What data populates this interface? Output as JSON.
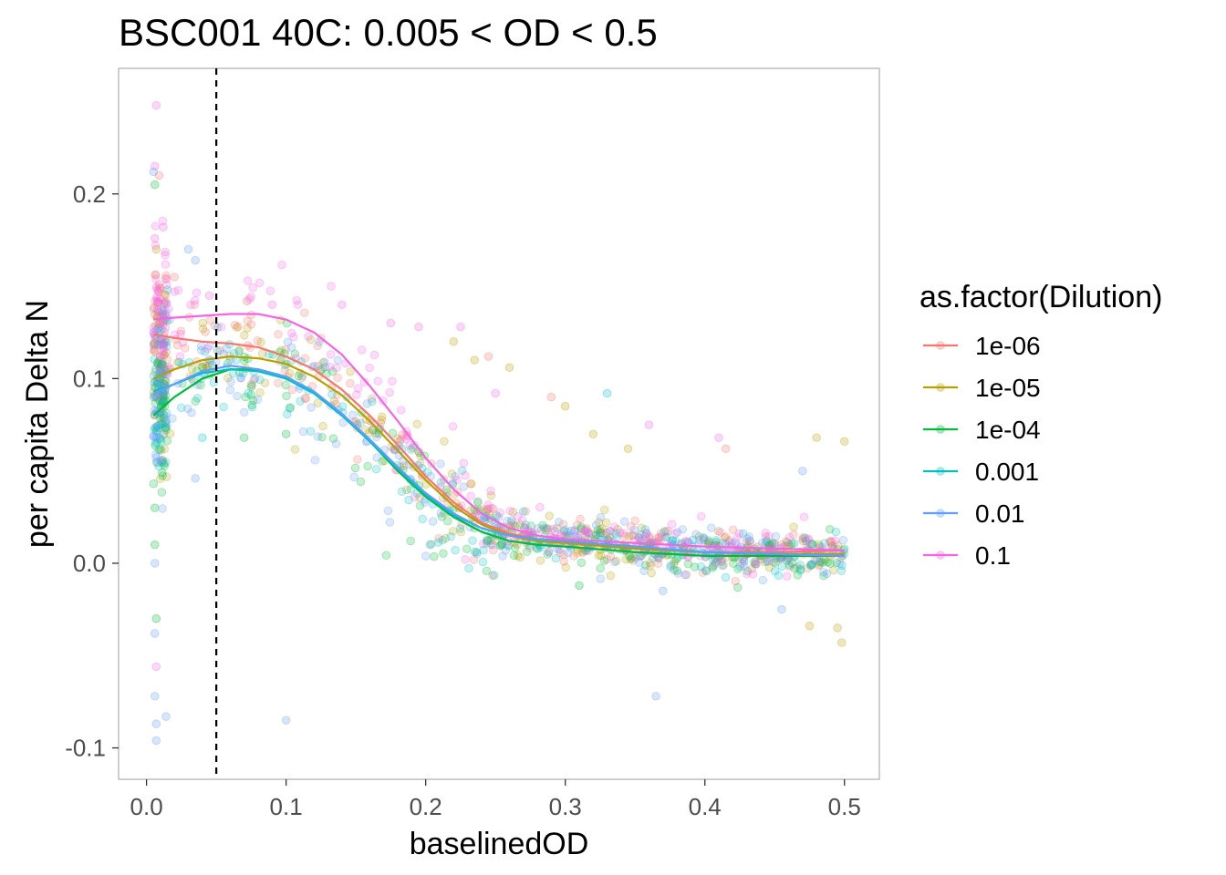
{
  "chart_data": {
    "type": "scatter",
    "title": "BSC001 40C: 0.005 < OD < 0.5",
    "xlabel": "baselinedOD",
    "ylabel": "per capita Delta N",
    "xlim": [
      -0.02,
      0.525
    ],
    "ylim": [
      -0.117,
      0.268
    ],
    "x_ticks": [
      "0.0",
      "0.1",
      "0.2",
      "0.3",
      "0.4",
      "0.5"
    ],
    "x_tick_values": [
      0.0,
      0.1,
      0.2,
      0.3,
      0.4,
      0.5
    ],
    "y_ticks": [
      "-0.1",
      "0.0",
      "0.1",
      "0.2"
    ],
    "y_tick_values": [
      -0.1,
      0.0,
      0.1,
      0.2
    ],
    "grid": false,
    "legend_position": "right",
    "legend_title": "as.factor(Dilution)",
    "vline": {
      "x": 0.05,
      "style": "dashed",
      "color": "#000000"
    },
    "series": [
      {
        "name": "1e-06",
        "color": "#F8766D",
        "smooth": [
          [
            0.005,
            0.124
          ],
          [
            0.02,
            0.122
          ],
          [
            0.04,
            0.12
          ],
          [
            0.06,
            0.119
          ],
          [
            0.08,
            0.117
          ],
          [
            0.1,
            0.112
          ],
          [
            0.12,
            0.105
          ],
          [
            0.14,
            0.094
          ],
          [
            0.16,
            0.08
          ],
          [
            0.18,
            0.064
          ],
          [
            0.2,
            0.047
          ],
          [
            0.22,
            0.033
          ],
          [
            0.24,
            0.022
          ],
          [
            0.26,
            0.016
          ],
          [
            0.28,
            0.013
          ],
          [
            0.3,
            0.011
          ],
          [
            0.35,
            0.008
          ],
          [
            0.4,
            0.006
          ],
          [
            0.45,
            0.006
          ],
          [
            0.5,
            0.007
          ]
        ]
      },
      {
        "name": "1e-05",
        "color": "#B79F00",
        "smooth": [
          [
            0.005,
            0.1
          ],
          [
            0.02,
            0.105
          ],
          [
            0.04,
            0.11
          ],
          [
            0.06,
            0.112
          ],
          [
            0.08,
            0.111
          ],
          [
            0.1,
            0.108
          ],
          [
            0.12,
            0.101
          ],
          [
            0.14,
            0.091
          ],
          [
            0.16,
            0.077
          ],
          [
            0.18,
            0.061
          ],
          [
            0.2,
            0.045
          ],
          [
            0.22,
            0.031
          ],
          [
            0.24,
            0.021
          ],
          [
            0.26,
            0.015
          ],
          [
            0.28,
            0.012
          ],
          [
            0.3,
            0.011
          ],
          [
            0.35,
            0.008
          ],
          [
            0.4,
            0.006
          ],
          [
            0.45,
            0.005
          ],
          [
            0.5,
            0.005
          ]
        ]
      },
      {
        "name": "1e-04",
        "color": "#00BA38",
        "smooth": [
          [
            0.005,
            0.08
          ],
          [
            0.02,
            0.09
          ],
          [
            0.04,
            0.1
          ],
          [
            0.06,
            0.105
          ],
          [
            0.08,
            0.105
          ],
          [
            0.1,
            0.101
          ],
          [
            0.12,
            0.093
          ],
          [
            0.14,
            0.081
          ],
          [
            0.16,
            0.066
          ],
          [
            0.18,
            0.05
          ],
          [
            0.2,
            0.036
          ],
          [
            0.22,
            0.025
          ],
          [
            0.24,
            0.017
          ],
          [
            0.26,
            0.012
          ],
          [
            0.28,
            0.01
          ],
          [
            0.3,
            0.009
          ],
          [
            0.35,
            0.006
          ],
          [
            0.4,
            0.004
          ],
          [
            0.45,
            0.004
          ],
          [
            0.5,
            0.004
          ]
        ]
      },
      {
        "name": "0.001",
        "color": "#00BFC4",
        "smooth": [
          [
            0.005,
            0.093
          ],
          [
            0.02,
            0.097
          ],
          [
            0.04,
            0.103
          ],
          [
            0.06,
            0.105
          ],
          [
            0.08,
            0.104
          ],
          [
            0.1,
            0.1
          ],
          [
            0.12,
            0.092
          ],
          [
            0.14,
            0.08
          ],
          [
            0.16,
            0.066
          ],
          [
            0.18,
            0.051
          ],
          [
            0.2,
            0.037
          ],
          [
            0.22,
            0.026
          ],
          [
            0.24,
            0.019
          ],
          [
            0.26,
            0.015
          ],
          [
            0.28,
            0.013
          ],
          [
            0.3,
            0.012
          ],
          [
            0.35,
            0.009
          ],
          [
            0.4,
            0.006
          ],
          [
            0.45,
            0.005
          ],
          [
            0.5,
            0.004
          ]
        ]
      },
      {
        "name": "0.01",
        "color": "#619CFF",
        "smooth": [
          [
            0.005,
            0.092
          ],
          [
            0.02,
            0.097
          ],
          [
            0.04,
            0.104
          ],
          [
            0.06,
            0.107
          ],
          [
            0.08,
            0.105
          ],
          [
            0.1,
            0.101
          ],
          [
            0.12,
            0.093
          ],
          [
            0.14,
            0.081
          ],
          [
            0.16,
            0.067
          ],
          [
            0.18,
            0.052
          ],
          [
            0.2,
            0.038
          ],
          [
            0.22,
            0.027
          ],
          [
            0.24,
            0.019
          ],
          [
            0.26,
            0.015
          ],
          [
            0.28,
            0.013
          ],
          [
            0.3,
            0.012
          ],
          [
            0.35,
            0.009
          ],
          [
            0.4,
            0.006
          ],
          [
            0.45,
            0.005
          ],
          [
            0.5,
            0.004
          ]
        ]
      },
      {
        "name": "0.1",
        "color": "#F564E3",
        "smooth": [
          [
            0.005,
            0.132
          ],
          [
            0.02,
            0.133
          ],
          [
            0.04,
            0.134
          ],
          [
            0.06,
            0.135
          ],
          [
            0.08,
            0.135
          ],
          [
            0.1,
            0.132
          ],
          [
            0.12,
            0.125
          ],
          [
            0.14,
            0.113
          ],
          [
            0.16,
            0.096
          ],
          [
            0.18,
            0.077
          ],
          [
            0.2,
            0.057
          ],
          [
            0.22,
            0.04
          ],
          [
            0.24,
            0.027
          ],
          [
            0.26,
            0.019
          ],
          [
            0.28,
            0.015
          ],
          [
            0.3,
            0.013
          ],
          [
            0.35,
            0.011
          ],
          [
            0.4,
            0.009
          ],
          [
            0.45,
            0.008
          ],
          [
            0.5,
            0.007
          ]
        ]
      }
    ],
    "scatter_points": [
      {
        "series": "0.1",
        "x": 0.007,
        "y": 0.248
      },
      {
        "series": "0.1",
        "x": 0.006,
        "y": 0.215
      },
      {
        "series": "1e-06",
        "x": 0.009,
        "y": 0.21
      },
      {
        "series": "0.01",
        "x": 0.005,
        "y": 0.212
      },
      {
        "series": "1e-04",
        "x": 0.006,
        "y": 0.205
      },
      {
        "series": "0.1",
        "x": 0.012,
        "y": 0.182
      },
      {
        "series": "0.1",
        "x": 0.006,
        "y": 0.176
      },
      {
        "series": "1e-05",
        "x": 0.007,
        "y": 0.17
      },
      {
        "series": "0.01",
        "x": 0.03,
        "y": 0.17
      },
      {
        "series": "0.01",
        "x": 0.035,
        "y": 0.164
      },
      {
        "series": "1e-06",
        "x": 0.02,
        "y": 0.155
      },
      {
        "series": "0.001",
        "x": 0.015,
        "y": 0.148
      },
      {
        "series": "0.1",
        "x": 0.045,
        "y": 0.145
      },
      {
        "series": "1e-06",
        "x": 0.072,
        "y": 0.142
      },
      {
        "series": "0.1",
        "x": 0.09,
        "y": 0.14
      },
      {
        "series": "0.1",
        "x": 0.14,
        "y": 0.14
      },
      {
        "series": "0.1",
        "x": 0.175,
        "y": 0.13
      },
      {
        "series": "0.1",
        "x": 0.195,
        "y": 0.128
      },
      {
        "series": "0.1",
        "x": 0.225,
        "y": 0.128
      },
      {
        "series": "1e-05",
        "x": 0.22,
        "y": 0.12
      },
      {
        "series": "1e-06",
        "x": 0.245,
        "y": 0.112
      },
      {
        "series": "1e-05",
        "x": 0.235,
        "y": 0.11
      },
      {
        "series": "1e-05",
        "x": 0.26,
        "y": 0.106
      },
      {
        "series": "0.001",
        "x": 0.33,
        "y": 0.092
      },
      {
        "series": "0.1",
        "x": 0.25,
        "y": 0.092
      },
      {
        "series": "1e-06",
        "x": 0.29,
        "y": 0.09
      },
      {
        "series": "1e-05",
        "x": 0.3,
        "y": 0.085
      },
      {
        "series": "0.1",
        "x": 0.36,
        "y": 0.075
      },
      {
        "series": "1e-05",
        "x": 0.32,
        "y": 0.07
      },
      {
        "series": "0.1",
        "x": 0.41,
        "y": 0.068
      },
      {
        "series": "1e-05",
        "x": 0.48,
        "y": 0.068
      },
      {
        "series": "1e-05",
        "x": 0.5,
        "y": 0.066
      },
      {
        "series": "1e-06",
        "x": 0.415,
        "y": 0.062
      },
      {
        "series": "1e-05",
        "x": 0.345,
        "y": 0.062
      },
      {
        "series": "0.01",
        "x": 0.47,
        "y": 0.05
      },
      {
        "series": "1e-04",
        "x": 0.1,
        "y": 0.07
      },
      {
        "series": "1e-04",
        "x": 0.07,
        "y": 0.068
      },
      {
        "series": "0.001",
        "x": 0.04,
        "y": 0.068
      },
      {
        "series": "0.01",
        "x": 0.035,
        "y": 0.046
      },
      {
        "series": "1e-04",
        "x": 0.006,
        "y": 0.03
      },
      {
        "series": "1e-04",
        "x": 0.006,
        "y": 0.01
      },
      {
        "series": "0.01",
        "x": 0.006,
        "y": 0.0
      },
      {
        "series": "1e-04",
        "x": 0.007,
        "y": -0.03
      },
      {
        "series": "0.01",
        "x": 0.006,
        "y": -0.038
      },
      {
        "series": "0.1",
        "x": 0.007,
        "y": -0.056
      },
      {
        "series": "0.01",
        "x": 0.006,
        "y": -0.072
      },
      {
        "series": "0.01",
        "x": 0.007,
        "y": -0.087
      },
      {
        "series": "0.01",
        "x": 0.014,
        "y": -0.083
      },
      {
        "series": "0.01",
        "x": 0.007,
        "y": -0.096
      },
      {
        "series": "0.01",
        "x": 0.1,
        "y": -0.085
      },
      {
        "series": "0.01",
        "x": 0.365,
        "y": -0.072
      },
      {
        "series": "1e-05",
        "x": 0.498,
        "y": -0.043
      },
      {
        "series": "1e-05",
        "x": 0.495,
        "y": -0.035
      },
      {
        "series": "0.01",
        "x": 0.455,
        "y": -0.025
      },
      {
        "series": "1e-05",
        "x": 0.475,
        "y": -0.034
      },
      {
        "series": "1e-04",
        "x": 0.31,
        "y": -0.012
      },
      {
        "series": "0.01",
        "x": 0.37,
        "y": -0.015
      }
    ]
  }
}
